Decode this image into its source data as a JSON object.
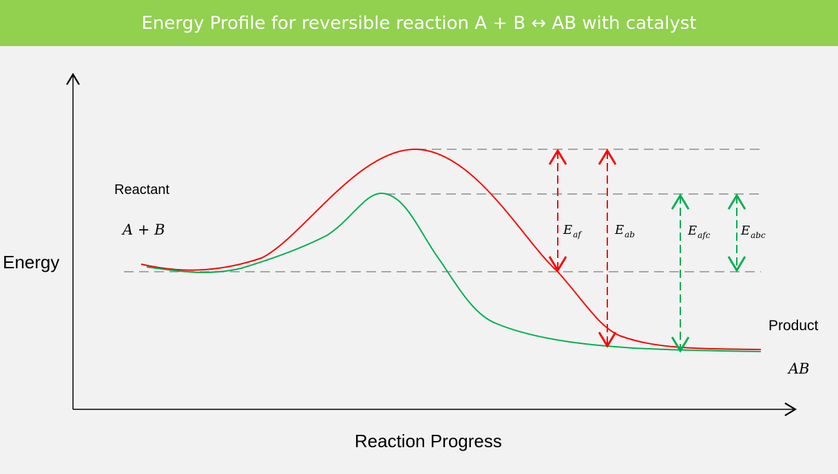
{
  "title": "Energy Profile for reversible reaction A + B ↔ AB with catalyst",
  "y_axis_label": "Energy",
  "x_axis_label": "Reaction Progress",
  "reactant_label": "Reactant",
  "reactant_formula": "A + B",
  "product_label": "Product",
  "product_formula": "AB",
  "arrows": [
    {
      "label": "E_af",
      "display": "Eaf",
      "sub": "af",
      "color": "#ff0000"
    },
    {
      "label": "E_ab",
      "display": "Eab",
      "sub": "ab",
      "color": "#ff0000"
    },
    {
      "label": "E_afc",
      "display": "Eafc",
      "sub": "afc",
      "color": "#00b050"
    },
    {
      "label": "E_abc",
      "display": "Eabc",
      "sub": "abc",
      "color": "#00b050"
    }
  ],
  "colors": {
    "uncatalyzed": "#ff0000",
    "catalyzed": "#00b050",
    "header": "#92d050",
    "guides": "#a6a6a6"
  }
}
